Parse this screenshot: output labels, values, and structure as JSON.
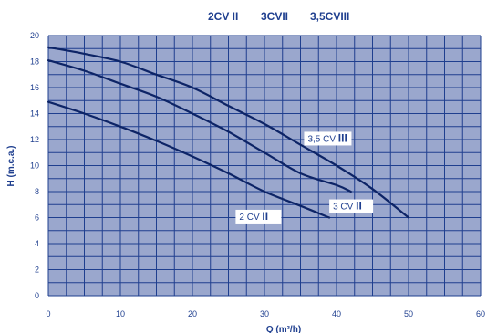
{
  "chart_data": {
    "type": "line",
    "legend_top": [
      "2CV II",
      "3CVII",
      "3,5CVIII"
    ],
    "xlabel": "Q (m³/h)",
    "ylabel": "H (m.c.a.)",
    "xlim": [
      0,
      60
    ],
    "ylim": [
      0,
      20
    ],
    "x_ticks": [
      "0",
      "10",
      "20",
      "30",
      "40",
      "50",
      "60"
    ],
    "y_ticks": [
      "0",
      "2",
      "4",
      "6",
      "8",
      "10",
      "12",
      "14",
      "16",
      "18",
      "20"
    ],
    "grid": true,
    "background_color": "#9aa7cd",
    "grid_color": "#1f3f8f",
    "line_color": "#0d2466",
    "series": [
      {
        "name": "2 CV II",
        "x": [
          0,
          5,
          10,
          15,
          20,
          25,
          30,
          35,
          39
        ],
        "y": [
          14.9,
          14.0,
          13.0,
          11.9,
          10.7,
          9.4,
          8.0,
          6.9,
          6.0
        ]
      },
      {
        "name": "3 CV II",
        "x": [
          0,
          5,
          10,
          15,
          20,
          25,
          30,
          35,
          40,
          42
        ],
        "y": [
          18.1,
          17.3,
          16.3,
          15.3,
          14.0,
          12.6,
          11.0,
          9.4,
          8.5,
          8.0
        ]
      },
      {
        "name": "3,5 CV III",
        "x": [
          0,
          5,
          10,
          15,
          20,
          25,
          30,
          35,
          40,
          45,
          50
        ],
        "y": [
          19.1,
          18.6,
          18.0,
          17.0,
          16.0,
          14.6,
          13.2,
          11.6,
          10.0,
          8.2,
          6.0
        ]
      }
    ],
    "curve_label_parts": [
      {
        "main": "2 CV ",
        "roman": "II"
      },
      {
        "main": "3 CV ",
        "roman": "II"
      },
      {
        "main": "3,5 CV ",
        "roman": "III"
      }
    ]
  }
}
